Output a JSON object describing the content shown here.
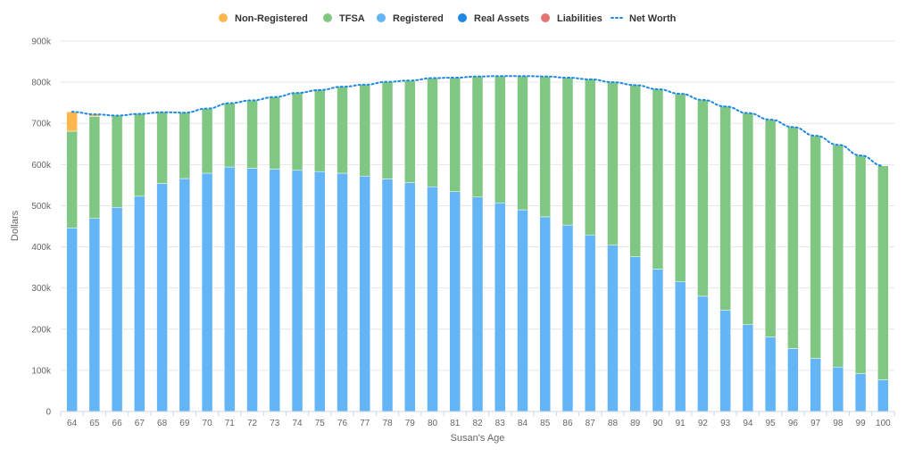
{
  "chart_data": {
    "type": "bar",
    "stacked": true,
    "xlabel": "Susan's Age",
    "ylabel": "Dollars",
    "ylim": [
      0,
      900000
    ],
    "yticks": [
      0,
      100000,
      200000,
      300000,
      400000,
      500000,
      600000,
      700000,
      800000,
      900000
    ],
    "ytick_labels": [
      "0",
      "100k",
      "200k",
      "300k",
      "400k",
      "500k",
      "600k",
      "700k",
      "800k",
      "900k"
    ],
    "grid": true,
    "legend_position": "top-center",
    "categories": [
      "64",
      "65",
      "66",
      "67",
      "68",
      "69",
      "70",
      "71",
      "72",
      "73",
      "74",
      "75",
      "76",
      "77",
      "78",
      "79",
      "80",
      "81",
      "82",
      "83",
      "84",
      "85",
      "86",
      "87",
      "88",
      "89",
      "90",
      "91",
      "92",
      "93",
      "94",
      "95",
      "96",
      "97",
      "98",
      "99",
      "100"
    ],
    "series": [
      {
        "name": "Non-Registered",
        "color": "#ffb74d",
        "marker": "circle",
        "values": [
          47000,
          5000,
          0,
          0,
          0,
          0,
          0,
          0,
          0,
          0,
          0,
          0,
          0,
          0,
          0,
          0,
          0,
          0,
          0,
          0,
          0,
          0,
          0,
          0,
          0,
          0,
          0,
          0,
          0,
          0,
          0,
          0,
          0,
          0,
          0,
          0,
          0
        ]
      },
      {
        "name": "TFSA",
        "color": "#81c784",
        "marker": "circle",
        "values": [
          235000,
          248000,
          223000,
          200000,
          173000,
          160000,
          157000,
          155000,
          165000,
          175000,
          188000,
          198000,
          210000,
          222000,
          236000,
          248000,
          264000,
          277000,
          293000,
          308000,
          325000,
          341000,
          358000,
          378000,
          396000,
          417000,
          437000,
          457000,
          477000,
          495000,
          514000,
          528000,
          538000,
          541000,
          540000,
          530000,
          520000
        ]
      },
      {
        "name": "Registered",
        "color": "#64b5f6",
        "marker": "circle",
        "values": [
          446000,
          469000,
          496000,
          523000,
          554000,
          566000,
          579000,
          594000,
          591000,
          589000,
          586000,
          583000,
          579000,
          572000,
          565000,
          556000,
          546000,
          534000,
          521000,
          507000,
          490000,
          473000,
          453000,
          429000,
          404000,
          376000,
          346000,
          315000,
          280000,
          246000,
          211000,
          181000,
          153000,
          129000,
          108000,
          92000,
          77000
        ]
      },
      {
        "name": "Real Assets",
        "color": "#1e88e5",
        "marker": "circle",
        "values": [
          0,
          0,
          0,
          0,
          0,
          0,
          0,
          0,
          0,
          0,
          0,
          0,
          0,
          0,
          0,
          0,
          0,
          0,
          0,
          0,
          0,
          0,
          0,
          0,
          0,
          0,
          0,
          0,
          0,
          0,
          0,
          0,
          0,
          0,
          0,
          0,
          0
        ]
      },
      {
        "name": "Liabilities",
        "color": "#e57373",
        "marker": "circle",
        "values": [
          0,
          0,
          0,
          0,
          0,
          0,
          0,
          0,
          0,
          0,
          0,
          0,
          0,
          0,
          0,
          0,
          0,
          0,
          0,
          0,
          0,
          0,
          0,
          0,
          0,
          0,
          0,
          0,
          0,
          0,
          0,
          0,
          0,
          0,
          0,
          0,
          0
        ]
      },
      {
        "name": "Net Worth",
        "color": "#1e88e5",
        "marker": "dotted-line",
        "type": "line",
        "values": [
          728000,
          722000,
          719000,
          723000,
          727000,
          726000,
          736000,
          749000,
          756000,
          764000,
          774000,
          781000,
          789000,
          794000,
          801000,
          804000,
          810000,
          811000,
          814000,
          815000,
          815000,
          814000,
          811000,
          807000,
          800000,
          793000,
          783000,
          772000,
          757000,
          741000,
          725000,
          709000,
          691000,
          670000,
          648000,
          622000,
          597000
        ]
      }
    ]
  }
}
